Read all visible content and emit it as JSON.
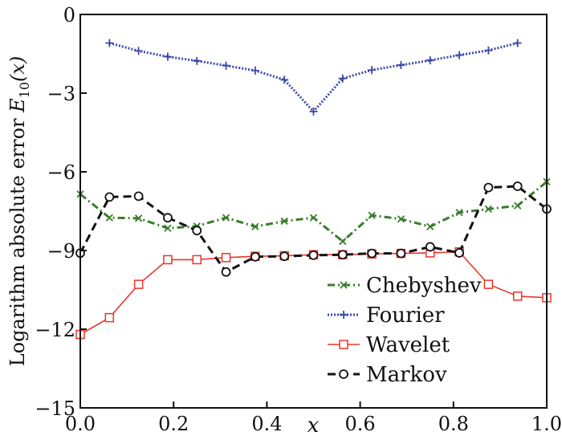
{
  "chart_data": {
    "type": "line",
    "title": "",
    "xlabel": "x",
    "ylabel": "Logarithm absolute error E10(x)",
    "ylabel_parts": {
      "main": "Logarithm absolute error ",
      "symbol": "E",
      "subscript": "10",
      "suffix": "(x)"
    },
    "xlim": [
      0,
      1
    ],
    "ylim": [
      -15,
      0
    ],
    "xticks": [
      "0.0",
      "0.2",
      "0.4",
      "0.6",
      "0.8",
      "1.0"
    ],
    "yticks": [
      "0",
      "-3",
      "-6",
      "-9",
      "-12",
      "-15"
    ],
    "grid": false,
    "legend_position": "bottom-right",
    "series": [
      {
        "name": "Chebyshev",
        "color": "#3a7d2c",
        "marker": "x",
        "dash": "dashdot",
        "x": [
          0,
          0.0625,
          0.125,
          0.1875,
          0.25,
          0.3125,
          0.375,
          0.4375,
          0.5,
          0.5625,
          0.625,
          0.6875,
          0.75,
          0.8125,
          0.875,
          0.9375,
          1.0
        ],
        "y": [
          -6.85,
          -7.75,
          -7.77,
          -8.15,
          -8.07,
          -7.75,
          -8.09,
          -7.88,
          -7.75,
          -8.65,
          -7.66,
          -7.8,
          -8.09,
          -7.55,
          -7.42,
          -7.29,
          -6.38
        ]
      },
      {
        "name": "Fourier",
        "color": "#3c4aa8",
        "marker": "+",
        "dash": "dotted",
        "x": [
          0.0625,
          0.125,
          0.1875,
          0.25,
          0.3125,
          0.375,
          0.4375,
          0.5,
          0.5625,
          0.625,
          0.6875,
          0.75,
          0.8125,
          0.875,
          0.9375
        ],
        "y": [
          -1.09,
          -1.39,
          -1.61,
          -1.77,
          -1.95,
          -2.14,
          -2.49,
          -3.7,
          -2.44,
          -2.12,
          -1.93,
          -1.75,
          -1.55,
          -1.37,
          -1.09
        ]
      },
      {
        "name": "Wavelet",
        "color": "#e8352b",
        "marker": "square",
        "dash": "solid",
        "x": [
          0,
          0.0625,
          0.125,
          0.1875,
          0.25,
          0.3125,
          0.375,
          0.4375,
          0.5,
          0.5625,
          0.625,
          0.6875,
          0.75,
          0.8125,
          0.875,
          0.9375,
          1.0
        ],
        "y": [
          -12.2,
          -11.56,
          -10.29,
          -9.35,
          -9.35,
          -9.27,
          -9.22,
          -9.2,
          -9.16,
          -9.16,
          -9.13,
          -9.11,
          -9.09,
          -9.05,
          -10.29,
          -10.74,
          -10.8
        ]
      },
      {
        "name": "Markov",
        "color": "#111111",
        "marker": "circle",
        "dash": "dashed",
        "x": [
          0,
          0.0625,
          0.125,
          0.1875,
          0.25,
          0.3125,
          0.375,
          0.4375,
          0.5,
          0.5625,
          0.625,
          0.6875,
          0.75,
          0.8125,
          0.875,
          0.9375,
          1.0
        ],
        "y": [
          -9.1,
          -6.96,
          -6.93,
          -7.75,
          -8.24,
          -9.82,
          -9.24,
          -9.22,
          -9.18,
          -9.16,
          -9.11,
          -9.11,
          -8.86,
          -9.09,
          -6.6,
          -6.55,
          -7.42
        ]
      }
    ]
  }
}
